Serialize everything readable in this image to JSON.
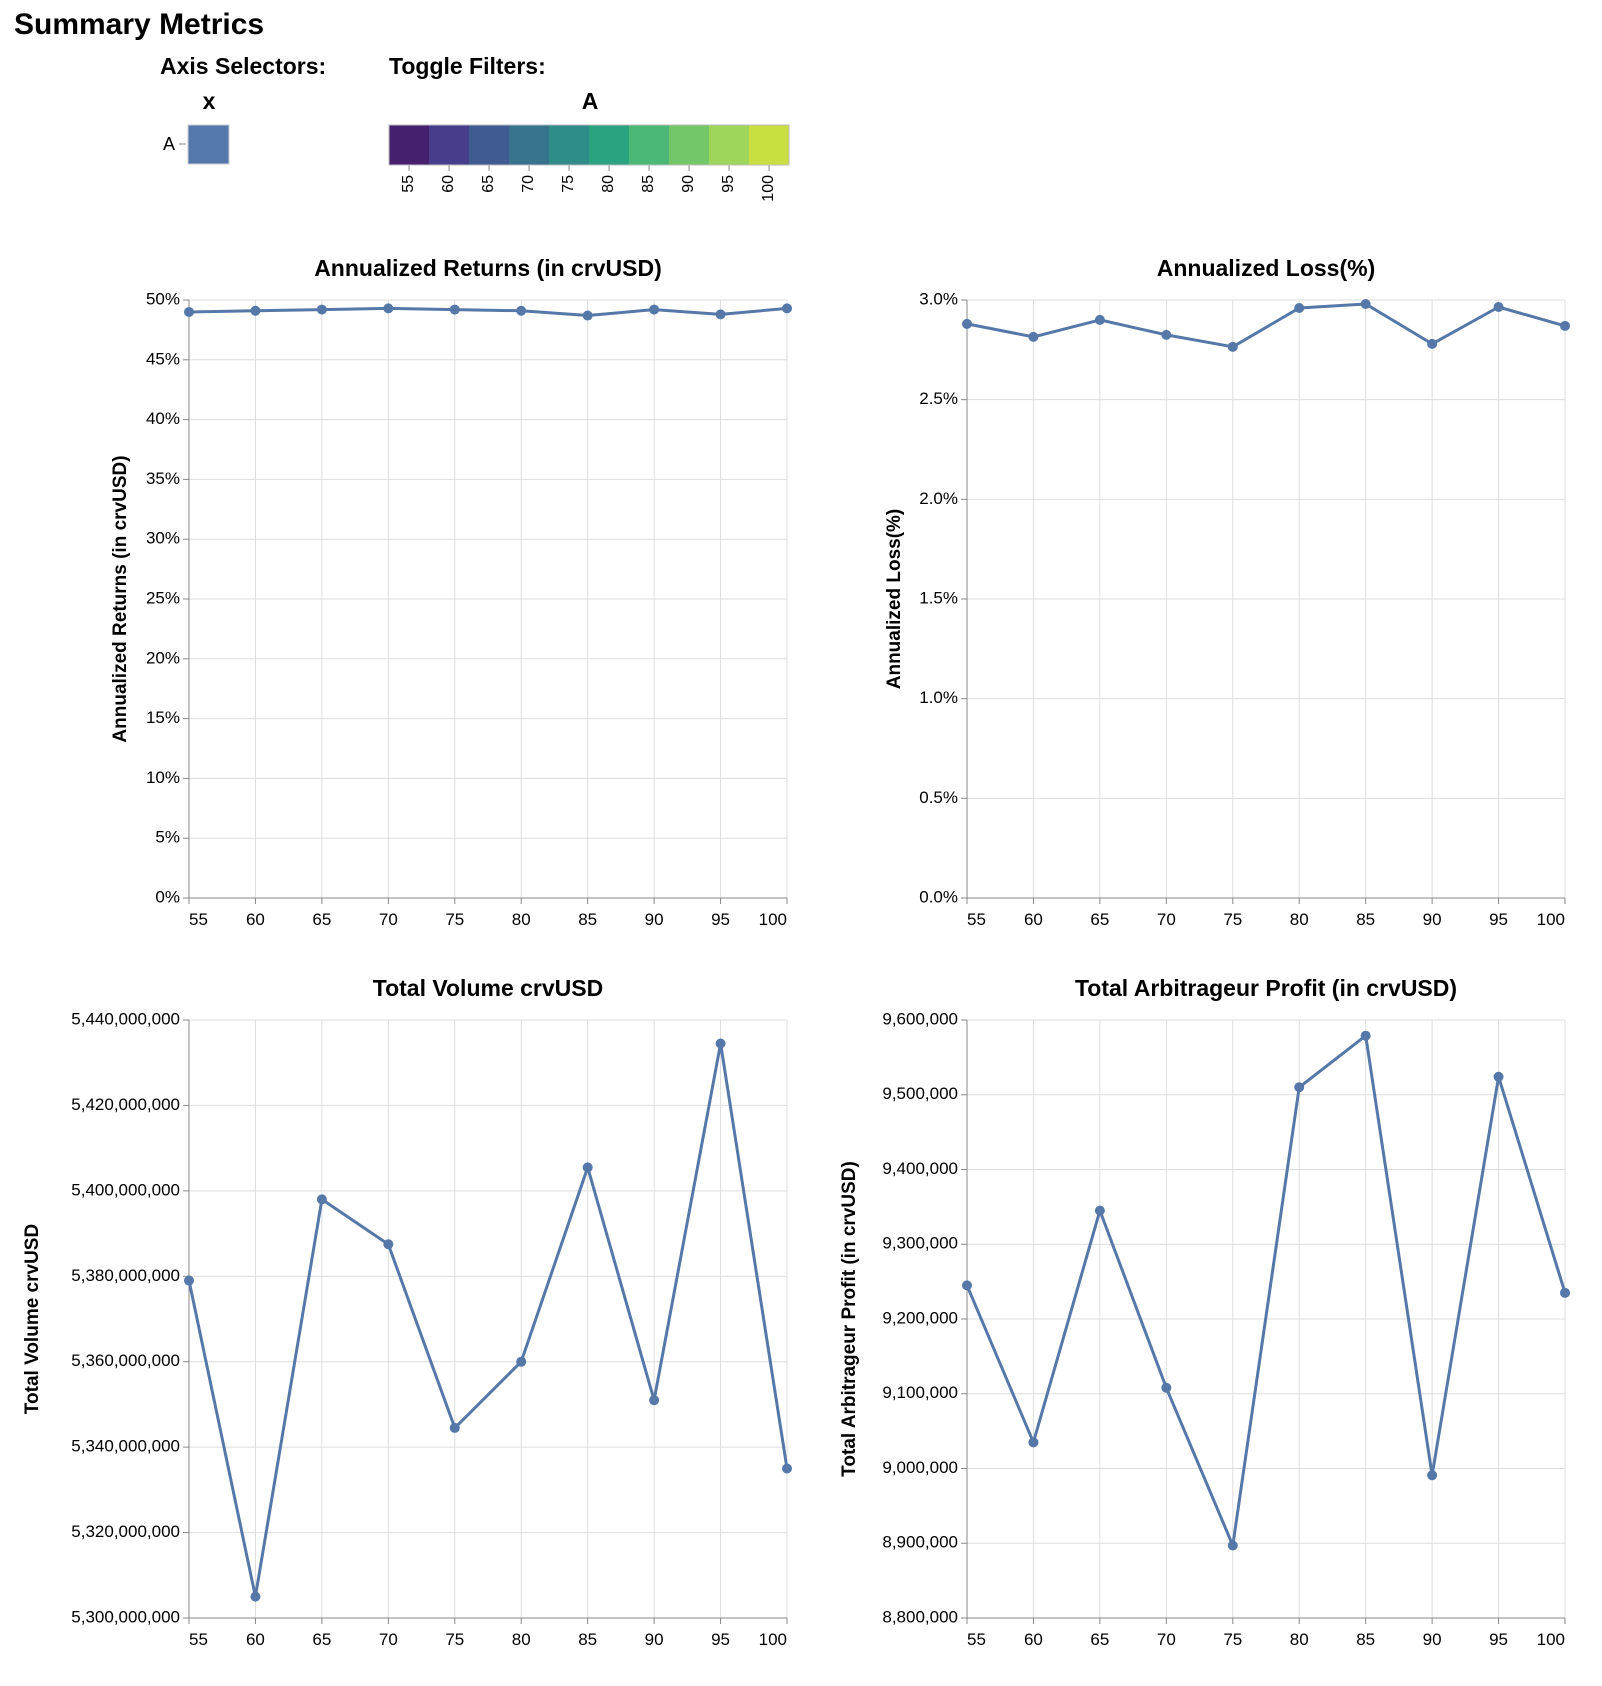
{
  "page": {
    "title": "Summary Metrics"
  },
  "controls": {
    "axis_selectors_label": "Axis Selectors:",
    "axis_column_header": "x",
    "axis_row_label": "A",
    "axis_cell_color": "#5478ab",
    "toggle_filters_label": "Toggle Filters:",
    "toggle_header": "A",
    "toggle_values": [
      "55",
      "60",
      "65",
      "70",
      "75",
      "80",
      "85",
      "90",
      "95",
      "100"
    ],
    "toggle_colors": [
      "#46206e",
      "#473d8a",
      "#3f5b91",
      "#38738e",
      "#2e8c89",
      "#2aa381",
      "#4bb878",
      "#74c768",
      "#9dd65a",
      "#cae041"
    ]
  },
  "colors": {
    "series": "#5578a8",
    "grid": "#dddddd",
    "axis": "#888888"
  },
  "chart_data": [
    {
      "id": "returns",
      "type": "line",
      "title": "Annualized Returns (in crvUSD)",
      "ylabel": "Annualized Returns (in crvUSD)",
      "xlabel": "",
      "x": [
        55,
        60,
        65,
        70,
        75,
        80,
        85,
        90,
        95,
        100
      ],
      "y": [
        0.49,
        0.491,
        0.492,
        0.493,
        0.492,
        0.491,
        0.487,
        0.492,
        0.488,
        0.493
      ],
      "xlim": [
        55,
        100
      ],
      "ylim": [
        0,
        0.5
      ],
      "yticks": [
        0,
        0.05,
        0.1,
        0.15,
        0.2,
        0.25,
        0.3,
        0.35,
        0.4,
        0.45,
        0.5
      ],
      "ytick_labels": [
        "0%",
        "5%",
        "10%",
        "15%",
        "20%",
        "25%",
        "30%",
        "35%",
        "40%",
        "45%",
        "50%"
      ],
      "xticks": [
        55,
        60,
        65,
        70,
        75,
        80,
        85,
        90,
        95,
        100
      ],
      "xtick_labels": [
        "55",
        "60",
        "65",
        "70",
        "75",
        "80",
        "85",
        "90",
        "95",
        "100"
      ],
      "grid": true
    },
    {
      "id": "loss",
      "type": "line",
      "title": "Annualized Loss(%)",
      "ylabel": "Annualized Loss(%)",
      "xlabel": "",
      "x": [
        55,
        60,
        65,
        70,
        75,
        80,
        85,
        90,
        95,
        100
      ],
      "y": [
        0.0288,
        0.02815,
        0.029,
        0.02825,
        0.02765,
        0.0296,
        0.0298,
        0.0278,
        0.02965,
        0.0287
      ],
      "xlim": [
        55,
        100
      ],
      "ylim": [
        0,
        0.03
      ],
      "yticks": [
        0,
        0.005,
        0.01,
        0.015,
        0.02,
        0.025,
        0.03
      ],
      "ytick_labels": [
        "0.0%",
        "0.5%",
        "1.0%",
        "1.5%",
        "2.0%",
        "2.5%",
        "3.0%"
      ],
      "xticks": [
        55,
        60,
        65,
        70,
        75,
        80,
        85,
        90,
        95,
        100
      ],
      "xtick_labels": [
        "55",
        "60",
        "65",
        "70",
        "75",
        "80",
        "85",
        "90",
        "95",
        "100"
      ],
      "grid": true
    },
    {
      "id": "volume",
      "type": "line",
      "title": "Total Volume crvUSD",
      "ylabel": "Total Volume crvUSD",
      "xlabel": "",
      "x": [
        55,
        60,
        65,
        70,
        75,
        80,
        85,
        90,
        95,
        100
      ],
      "y": [
        5379000000,
        5305000000,
        5398000000,
        5387500000,
        5344500000,
        5360000000,
        5405500000,
        5351000000,
        5434500000,
        5335000000
      ],
      "xlim": [
        55,
        100
      ],
      "ylim": [
        5300000000,
        5440000000
      ],
      "yticks": [
        5300000000,
        5320000000,
        5340000000,
        5360000000,
        5380000000,
        5400000000,
        5420000000,
        5440000000
      ],
      "ytick_labels": [
        "5,300,000,000",
        "5,320,000,000",
        "5,340,000,000",
        "5,360,000,000",
        "5,380,000,000",
        "5,400,000,000",
        "5,420,000,000",
        "5,440,000,000"
      ],
      "xticks": [
        55,
        60,
        65,
        70,
        75,
        80,
        85,
        90,
        95,
        100
      ],
      "xtick_labels": [
        "55",
        "60",
        "65",
        "70",
        "75",
        "80",
        "85",
        "90",
        "95",
        "100"
      ],
      "grid": true
    },
    {
      "id": "profit",
      "type": "line",
      "title": "Total Arbitrageur Profit (in crvUSD)",
      "ylabel": "Total Arbitrageur Profit (in crvUSD)",
      "xlabel": "",
      "x": [
        55,
        60,
        65,
        70,
        75,
        80,
        85,
        90,
        95,
        100
      ],
      "y": [
        9245000,
        9035000,
        9345000,
        9108000,
        8897000,
        9510000,
        9579000,
        8991000,
        9524000,
        9235000
      ],
      "xlim": [
        55,
        100
      ],
      "ylim": [
        8800000,
        9600000
      ],
      "yticks": [
        8800000,
        8900000,
        9000000,
        9100000,
        9200000,
        9300000,
        9400000,
        9500000,
        9600000
      ],
      "ytick_labels": [
        "8,800,000",
        "8,900,000",
        "9,000,000",
        "9,100,000",
        "9,200,000",
        "9,300,000",
        "9,400,000",
        "9,500,000",
        "9,600,000"
      ],
      "xticks": [
        55,
        60,
        65,
        70,
        75,
        80,
        85,
        90,
        95,
        100
      ],
      "xtick_labels": [
        "55",
        "60",
        "65",
        "70",
        "75",
        "80",
        "85",
        "90",
        "95",
        "100"
      ],
      "grid": true
    }
  ]
}
